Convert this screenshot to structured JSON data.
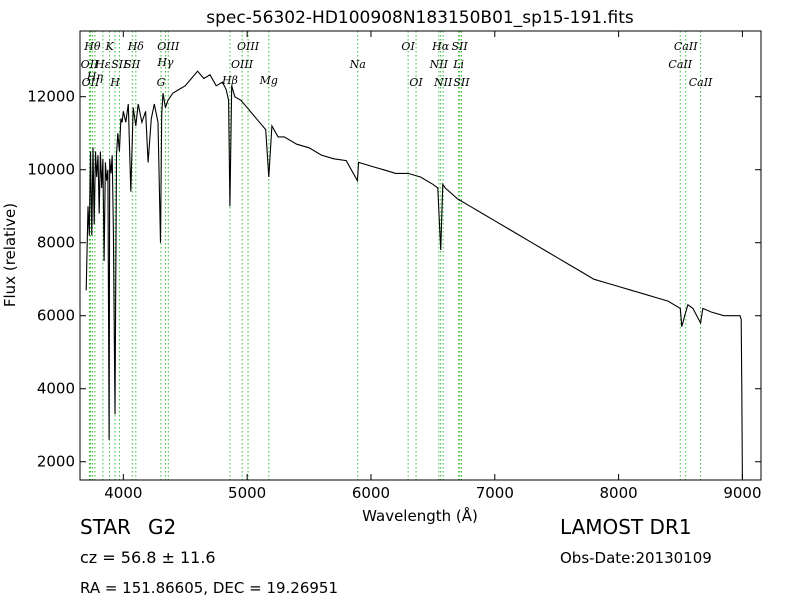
{
  "chart_data": {
    "type": "line",
    "title": "spec-56302-HD100908N183150B01_sp15-191.fits",
    "xlabel": "Wavelength (Å)",
    "ylabel": "Flux (relative)",
    "xlim": [
      3650,
      9150
    ],
    "ylim": [
      1500,
      13800
    ],
    "xticks": [
      4000,
      5000,
      6000,
      7000,
      8000,
      9000
    ],
    "yticks": [
      2000,
      4000,
      6000,
      8000,
      10000,
      12000
    ],
    "xtick_labels": [
      "4000",
      "5000",
      "6000",
      "7000",
      "8000",
      "9000"
    ],
    "ytick_labels": [
      "2000",
      "4000",
      "6000",
      "8000",
      "10000",
      "12000"
    ],
    "grid": false,
    "line_color": "#000000",
    "marker_color": "#33bb33",
    "series": [
      {
        "x": [
          3700,
          3715,
          3725,
          3735,
          3745,
          3755,
          3765,
          3775,
          3785,
          3795,
          3805,
          3815,
          3825,
          3835,
          3845,
          3855,
          3865,
          3875,
          3885,
          3890,
          3900,
          3910,
          3920,
          3933,
          3945,
          3955,
          3968,
          3980,
          3990,
          4000,
          4020,
          4040,
          4060,
          4080,
          4101,
          4120,
          4150,
          4180,
          4200,
          4226,
          4250,
          4280,
          4300,
          4310,
          4320,
          4340,
          4360,
          4380,
          4400,
          4450,
          4500,
          4550,
          4600,
          4650,
          4700,
          4750,
          4800,
          4830,
          4850,
          4861,
          4875,
          4900,
          4950,
          5000,
          5050,
          5100,
          5150,
          5175,
          5200,
          5250,
          5300,
          5400,
          5500,
          5600,
          5700,
          5800,
          5890,
          5900,
          6000,
          6100,
          6200,
          6300,
          6400,
          6500,
          6540,
          6563,
          6580,
          6600,
          6700,
          6800,
          6900,
          7000,
          7100,
          7200,
          7300,
          7400,
          7500,
          7600,
          7700,
          7800,
          7900,
          8000,
          8100,
          8200,
          8300,
          8400,
          8498,
          8510,
          8542,
          8560,
          8600,
          8662,
          8680,
          8750,
          8850,
          8950,
          8980,
          8990,
          8995,
          9000
        ],
        "y": [
          6700,
          9000,
          8200,
          10500,
          8200,
          10600,
          8500,
          10500,
          9800,
          10400,
          8800,
          10500,
          9500,
          10300,
          7500,
          10200,
          9700,
          10000,
          2600,
          10300,
          9900,
          10400,
          8300,
          3300,
          10400,
          11000,
          10500,
          11400,
          11300,
          11600,
          11300,
          11800,
          9400,
          11700,
          11200,
          11800,
          11300,
          11600,
          10200,
          11400,
          11800,
          11300,
          8000,
          11500,
          12100,
          11700,
          11900,
          12000,
          12100,
          12200,
          12300,
          12500,
          12700,
          12500,
          12600,
          12300,
          12400,
          12200,
          11900,
          9000,
          12300,
          12000,
          11900,
          11700,
          11500,
          11300,
          11100,
          9800,
          11200,
          10900,
          10900,
          10700,
          10600,
          10400,
          10300,
          10250,
          9700,
          10200,
          10100,
          10000,
          9900,
          9900,
          9800,
          9600,
          9500,
          7800,
          9600,
          9500,
          9200,
          9000,
          8800,
          8600,
          8400,
          8200,
          8000,
          7800,
          7600,
          7400,
          7200,
          7000,
          6900,
          6800,
          6700,
          6600,
          6500,
          6400,
          6200,
          5700,
          6100,
          6300,
          6200,
          5800,
          6200,
          6100,
          6000,
          6000,
          6000,
          5900,
          4000,
          1500
        ]
      }
    ],
    "line_markers": [
      {
        "x": 3727,
        "label": "OII",
        "row": 1
      },
      {
        "x": 3735,
        "label": "OII",
        "row": 2
      },
      {
        "x": 3750,
        "label": "Hθ",
        "row": 0
      },
      {
        "x": 3770,
        "label": "Hη",
        "row": 1.7
      },
      {
        "x": 3835,
        "label": "Hε",
        "row": 1
      },
      {
        "x": 3889,
        "label": "K",
        "row": 0
      },
      {
        "x": 3933,
        "label": "H",
        "row": 2
      },
      {
        "x": 3968,
        "label": "SII",
        "row": 1
      },
      {
        "x": 4072,
        "label": "SII",
        "row": 1
      },
      {
        "x": 4101,
        "label": "Hδ",
        "row": 0
      },
      {
        "x": 4304,
        "label": "G",
        "row": 2
      },
      {
        "x": 4340,
        "label": "Hγ",
        "row": 0.9
      },
      {
        "x": 4363,
        "label": "OIII",
        "row": 0
      },
      {
        "x": 4861,
        "label": "Hβ",
        "row": 1.9
      },
      {
        "x": 4959,
        "label": "OIII",
        "row": 1
      },
      {
        "x": 5007,
        "label": "OIII",
        "row": 0
      },
      {
        "x": 5175,
        "label": "Mg",
        "row": 1.9
      },
      {
        "x": 5893,
        "label": "Na",
        "row": 1
      },
      {
        "x": 6300,
        "label": "OI",
        "row": 0
      },
      {
        "x": 6364,
        "label": "OI",
        "row": 2
      },
      {
        "x": 6548,
        "label": "NII",
        "row": 1
      },
      {
        "x": 6563,
        "label": "Hα",
        "row": 0
      },
      {
        "x": 6583,
        "label": "NII",
        "row": 2
      },
      {
        "x": 6708,
        "label": "Li",
        "row": 1
      },
      {
        "x": 6716,
        "label": "SII",
        "row": 0
      },
      {
        "x": 6731,
        "label": "SII",
        "row": 2
      },
      {
        "x": 8498,
        "label": "CaII",
        "row": 1
      },
      {
        "x": 8542,
        "label": "CaII",
        "row": 0
      },
      {
        "x": 8662,
        "label": "CaII",
        "row": 2
      }
    ]
  },
  "info": {
    "object_class": "STAR",
    "subclass": "G2",
    "cz": "cz = 56.8 ± 11.6",
    "coords": "RA = 151.86605, DEC = 19.26951",
    "survey": "LAMOST DR1",
    "obs_date": "Obs-Date:20130109"
  }
}
